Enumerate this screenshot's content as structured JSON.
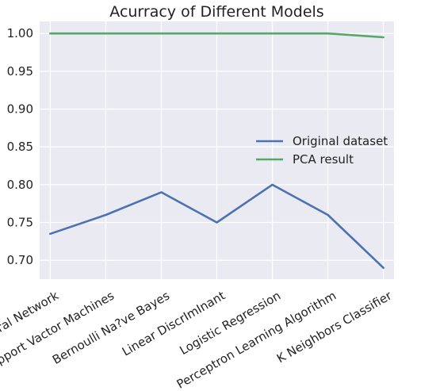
{
  "chart_data": {
    "type": "line",
    "title": "Acurracy of Different Models",
    "xlabel": "",
    "ylabel": "",
    "categories": [
      "Neural Network",
      "Support Vactor Machines",
      "Bernoulli Na?ve Bayes",
      "Linear DiscrImInant",
      "Logistic Regression",
      "Perceptron Learning Algorithm",
      "K Neighbors Classifier"
    ],
    "series": [
      {
        "name": "Original dataset",
        "color": "#4c72b0",
        "values": [
          0.735,
          0.76,
          0.79,
          0.75,
          0.8,
          0.76,
          0.69
        ]
      },
      {
        "name": "PCA result",
        "color": "#55a868",
        "values": [
          1.0,
          1.0,
          1.0,
          1.0,
          1.0,
          1.0,
          0.995
        ]
      }
    ],
    "ylim": [
      0.675,
      1.016
    ],
    "yticks": [
      0.7,
      0.75,
      0.8,
      0.85,
      0.9,
      0.95,
      1.0
    ],
    "ytick_labels": [
      "0.70",
      "0.75",
      "0.80",
      "0.85",
      "0.90",
      "0.95",
      "1.00"
    ],
    "grid": true,
    "legend_position": "center-right",
    "colors": {
      "background": "#eaeaf2",
      "grid": "#ffffff"
    }
  }
}
